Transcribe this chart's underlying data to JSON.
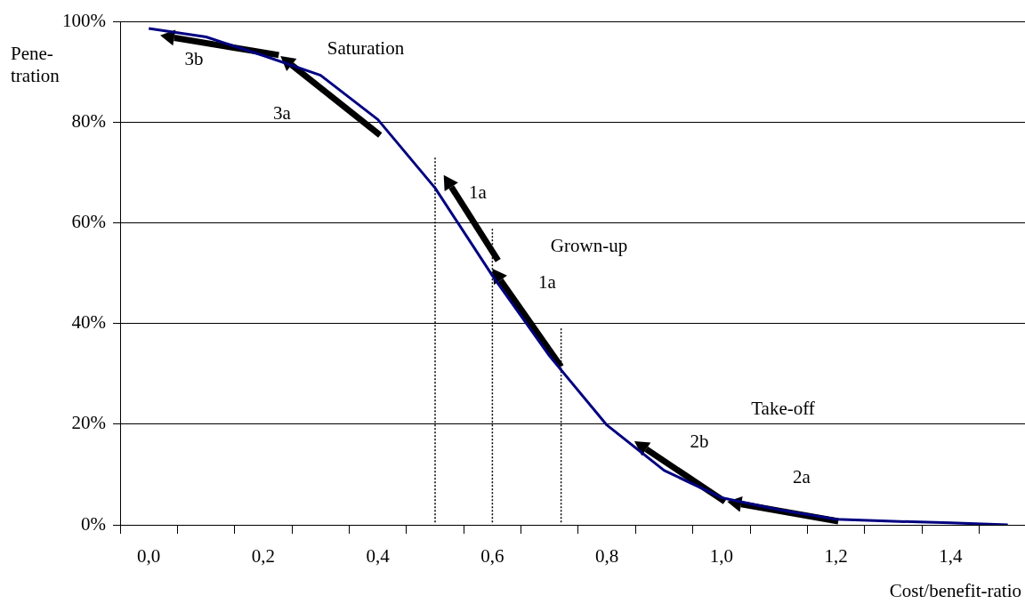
{
  "chart_data": {
    "type": "line",
    "xlabel": "Cost/benefit-ratio",
    "ylabel": "Pene-\ntration",
    "xlim": [
      -0.05,
      1.53
    ],
    "ylim": [
      0,
      100
    ],
    "xticks": [
      {
        "value": -0.05,
        "label": null
      },
      {
        "value": 0,
        "label": "0,0"
      },
      {
        "value": 0.05,
        "label": null
      },
      {
        "value": 0.15,
        "label": null
      },
      {
        "value": 0.2,
        "label": "0,2"
      },
      {
        "value": 0.25,
        "label": null
      },
      {
        "value": 0.35,
        "label": null
      },
      {
        "value": 0.4,
        "label": "0,4"
      },
      {
        "value": 0.45,
        "label": null
      },
      {
        "value": 0.55,
        "label": null
      },
      {
        "value": 0.6,
        "label": "0,6"
      },
      {
        "value": 0.65,
        "label": null
      },
      {
        "value": 0.75,
        "label": null
      },
      {
        "value": 0.8,
        "label": "0,8"
      },
      {
        "value": 0.85,
        "label": null
      },
      {
        "value": 0.95,
        "label": null
      },
      {
        "value": 1.0,
        "label": "1,0"
      },
      {
        "value": 1.05,
        "label": null
      },
      {
        "value": 1.15,
        "label": null
      },
      {
        "value": 1.2,
        "label": "1,2"
      },
      {
        "value": 1.25,
        "label": null
      },
      {
        "value": 1.35,
        "label": null
      },
      {
        "value": 1.4,
        "label": "1,4"
      },
      {
        "value": 1.45,
        "label": null
      }
    ],
    "yticks": [
      {
        "value": 0,
        "label": "0%"
      },
      {
        "value": 20,
        "label": "20%"
      },
      {
        "value": 40,
        "label": "40%"
      },
      {
        "value": 60,
        "label": "60%"
      },
      {
        "value": 80,
        "label": "80%"
      },
      {
        "value": 100,
        "label": "100%"
      }
    ],
    "grid": "y",
    "legend": false,
    "marker": "none",
    "series": [
      {
        "x": [
          0,
          0.1,
          0.2,
          0.3,
          0.4,
          0.5,
          0.6,
          0.7,
          0.8,
          0.9,
          1.0,
          1.1,
          1.2,
          1.3,
          1.4,
          1.5
        ],
        "values": [
          98.6,
          96.9,
          93.2,
          89.3,
          80.5,
          66.9,
          49.5,
          33.5,
          19.8,
          10.8,
          5.4,
          3,
          1.1,
          0.7,
          0.4,
          0
        ],
        "color": "#000080"
      },
      {
        "x": [
          0.5,
          0.5
        ],
        "values": [
          0.5,
          73
        ],
        "color": "#000000",
        "line_style": "dotted"
      },
      {
        "x": [
          0.6,
          0.6
        ],
        "values": [
          0.5,
          59
        ],
        "color": "#000000",
        "line_style": "dotted"
      },
      {
        "x": [
          0.72,
          0.72
        ],
        "values": [
          0.5,
          39
        ],
        "color": "#000000",
        "line_style": "dotted"
      }
    ],
    "annotations": [
      "Saturation",
      "3b",
      "3a",
      "1a",
      "Grown-up",
      "1a",
      "Take-off",
      "2b",
      "2a"
    ]
  }
}
